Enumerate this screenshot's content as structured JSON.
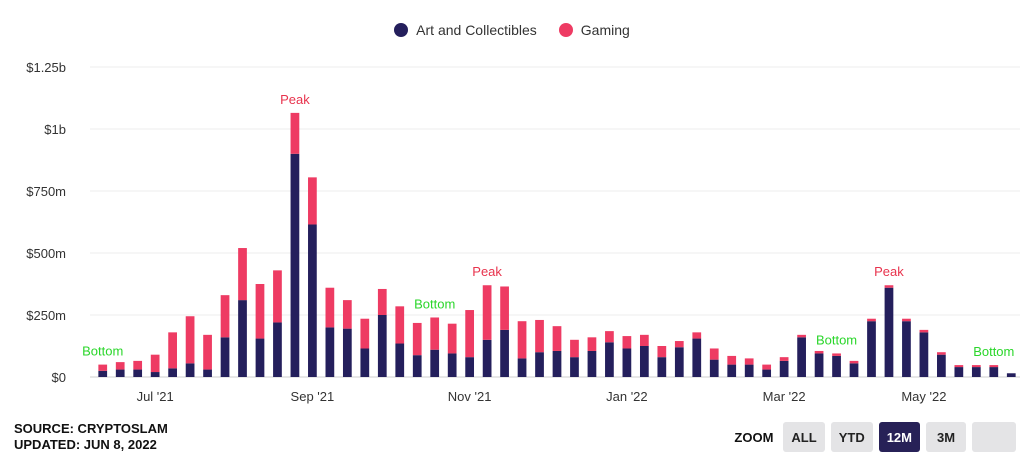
{
  "legend": [
    {
      "label": "Art and Collectibles",
      "color": "#241f5c"
    },
    {
      "label": "Gaming",
      "color": "#ee3b63"
    }
  ],
  "source": {
    "line1": "SOURCE: CRYPTOSLAM",
    "line2": "UPDATED: JUN 8, 2022"
  },
  "zoom": {
    "label": "ZOOM",
    "buttons": [
      "ALL",
      "YTD",
      "12M",
      "3M",
      ""
    ],
    "active": "12M"
  },
  "chart_data": {
    "type": "bar",
    "stacked": true,
    "title": "",
    "xlabel": "",
    "ylabel": "",
    "ylim": [
      0,
      1250
    ],
    "y_unit": "$m",
    "y_ticks": [
      {
        "value": 0,
        "label": "$0"
      },
      {
        "value": 250,
        "label": "$250m"
      },
      {
        "value": 500,
        "label": "$500m"
      },
      {
        "value": 750,
        "label": "$750m"
      },
      {
        "value": 1000,
        "label": "$1b"
      },
      {
        "value": 1250,
        "label": "$1.25b"
      }
    ],
    "grid": true,
    "legend_position": "top-center",
    "x_ticks": [
      {
        "index": 3,
        "label": "Jul '21"
      },
      {
        "index": 12,
        "label": "Sep '21"
      },
      {
        "index": 21,
        "label": "Nov '21"
      },
      {
        "index": 30,
        "label": "Jan '22"
      },
      {
        "index": 39,
        "label": "Mar '22"
      },
      {
        "index": 47,
        "label": "May '22"
      }
    ],
    "series": [
      {
        "name": "Art and Collectibles",
        "color": "#241f5c",
        "values": [
          25,
          30,
          30,
          20,
          35,
          55,
          30,
          160,
          310,
          155,
          220,
          900,
          615,
          200,
          195,
          115,
          250,
          135,
          88,
          110,
          95,
          80,
          150,
          190,
          75,
          100,
          105,
          80,
          105,
          140,
          115,
          125,
          80,
          120,
          155,
          70,
          50,
          50,
          30,
          65,
          160,
          95,
          85,
          55,
          225,
          360,
          225,
          180,
          90,
          40,
          40,
          40,
          15
        ]
      },
      {
        "name": "Gaming",
        "color": "#ee3b63",
        "values": [
          25,
          30,
          35,
          70,
          145,
          190,
          140,
          170,
          210,
          220,
          210,
          165,
          190,
          160,
          115,
          120,
          105,
          150,
          130,
          130,
          120,
          190,
          220,
          175,
          150,
          130,
          100,
          70,
          55,
          45,
          50,
          45,
          45,
          25,
          25,
          45,
          35,
          25,
          20,
          15,
          10,
          10,
          10,
          10,
          10,
          10,
          10,
          10,
          10,
          8,
          8,
          8,
          0
        ]
      }
    ],
    "annotations": [
      {
        "index": 11,
        "text": "Peak",
        "kind": "peak"
      },
      {
        "index": 22,
        "text": "Peak",
        "kind": "peak"
      },
      {
        "index": 45,
        "text": "Peak",
        "kind": "peak"
      },
      {
        "index": 0,
        "text": "Bottom",
        "kind": "bottom"
      },
      {
        "index": 19,
        "text": "Bottom",
        "kind": "bottom"
      },
      {
        "index": 42,
        "text": "Bottom",
        "kind": "bottom"
      },
      {
        "index": 51,
        "text": "Bottom",
        "kind": "bottom"
      }
    ]
  }
}
